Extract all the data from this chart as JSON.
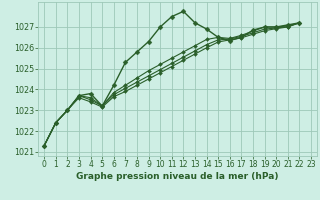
{
  "title": "Graphe pression niveau de la mer (hPa)",
  "background_color": "#ceeee4",
  "grid_color": "#9ec8b8",
  "line_color": "#2a5f2a",
  "ylim": [
    1020.8,
    1028.2
  ],
  "xlim": [
    -0.5,
    23.5
  ],
  "yticks": [
    1021,
    1022,
    1023,
    1024,
    1025,
    1026,
    1027
  ],
  "xtick_labels": [
    "0",
    "1",
    "2",
    "3",
    "4",
    "5",
    "6",
    "7",
    "8",
    "9",
    "10",
    "11",
    "12",
    "13",
    "14",
    "15",
    "16",
    "17",
    "18",
    "19",
    "20",
    "21",
    "22",
    "23"
  ],
  "xtick_positions": [
    0,
    1,
    2,
    3,
    4,
    5,
    6,
    7,
    8,
    9,
    10,
    11,
    12,
    13,
    14,
    15,
    16,
    17,
    18,
    19,
    20,
    21,
    22,
    23
  ],
  "series": [
    {
      "x": [
        0,
        1,
        2,
        3,
        4,
        5,
        6,
        7,
        8,
        9,
        10,
        11,
        12,
        13,
        14,
        15,
        16,
        17,
        18,
        19,
        20,
        21,
        22
      ],
      "y": [
        1021.3,
        1022.4,
        1023.0,
        1023.7,
        1023.8,
        1023.2,
        1024.2,
        1025.3,
        1025.8,
        1026.3,
        1027.0,
        1027.5,
        1027.75,
        1027.2,
        1026.9,
        1026.5,
        1026.35,
        1026.5,
        1026.85,
        1027.0,
        1027.0,
        1027.1,
        1027.2
      ]
    },
    {
      "x": [
        0,
        1,
        2,
        3,
        4,
        5,
        6,
        7,
        8,
        9,
        10,
        11,
        12,
        13,
        14,
        15,
        16,
        17,
        18,
        19,
        20,
        21,
        22
      ],
      "y": [
        1021.3,
        1022.4,
        1023.0,
        1023.7,
        1023.6,
        1023.2,
        1023.85,
        1024.2,
        1024.55,
        1024.9,
        1025.2,
        1025.5,
        1025.8,
        1026.1,
        1026.4,
        1026.5,
        1026.45,
        1026.6,
        1026.8,
        1027.0,
        1027.0,
        1027.05,
        1027.2
      ]
    },
    {
      "x": [
        0,
        1,
        2,
        3,
        4,
        5,
        6,
        7,
        8,
        9,
        10,
        11,
        12,
        13,
        14,
        15,
        16,
        17,
        18,
        19,
        20,
        21,
        22
      ],
      "y": [
        1021.3,
        1022.4,
        1023.0,
        1023.7,
        1023.5,
        1023.2,
        1023.75,
        1024.05,
        1024.35,
        1024.65,
        1024.95,
        1025.25,
        1025.55,
        1025.85,
        1026.15,
        1026.38,
        1026.42,
        1026.55,
        1026.72,
        1026.9,
        1026.95,
        1027.02,
        1027.2
      ]
    },
    {
      "x": [
        0,
        1,
        2,
        3,
        4,
        5,
        6,
        7,
        8,
        9,
        10,
        11,
        12,
        13,
        14,
        15,
        16,
        17,
        18,
        19,
        20,
        21,
        22
      ],
      "y": [
        1021.3,
        1022.4,
        1023.0,
        1023.6,
        1023.4,
        1023.15,
        1023.65,
        1023.9,
        1024.2,
        1024.5,
        1024.8,
        1025.1,
        1025.4,
        1025.7,
        1026.0,
        1026.28,
        1026.38,
        1026.48,
        1026.65,
        1026.82,
        1026.92,
        1027.0,
        1027.2
      ]
    }
  ],
  "tick_fontsize": 5.5,
  "label_fontsize": 6.5
}
